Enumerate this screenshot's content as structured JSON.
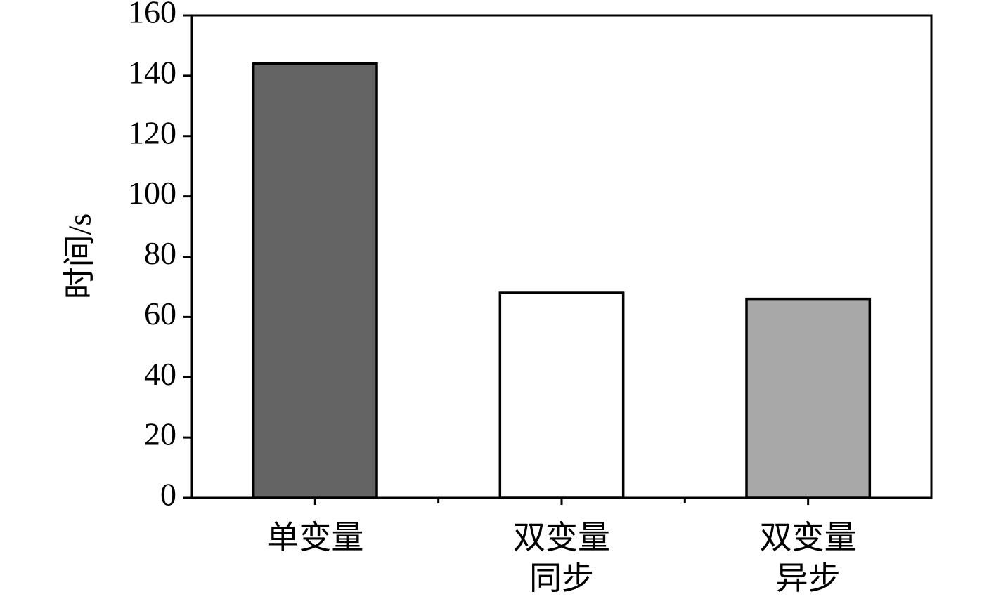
{
  "chart_data": {
    "type": "bar",
    "y_label": "时间/s",
    "categories": [
      "单变量",
      "双变量\n同步",
      "双变量\n异步"
    ],
    "values": [
      144,
      68,
      66
    ],
    "colors": [
      "#646464",
      "#ffffff",
      "#a8a8a8"
    ],
    "ylim": [
      0,
      160
    ],
    "yticks": [
      0,
      20,
      40,
      60,
      80,
      100,
      120,
      140,
      160
    ],
    "grid": false
  }
}
